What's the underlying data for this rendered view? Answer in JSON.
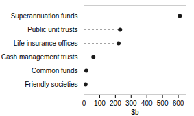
{
  "chart_data": {
    "type": "lollipop",
    "orientation": "horizontal",
    "categories": [
      "Superannuation funds",
      "Public unit trusts",
      "Life insurance offices",
      "Cash management trusts",
      "Common funds",
      "Friendly societies"
    ],
    "values": [
      610,
      230,
      220,
      60,
      15,
      10
    ],
    "color": "#1a1a1a",
    "marker": "circle",
    "line_style": "dashed",
    "xlabel": "$b",
    "xlim": [
      0,
      650
    ],
    "xticks": [
      0,
      100,
      200,
      300,
      400,
      500,
      600
    ],
    "grid": false
  }
}
